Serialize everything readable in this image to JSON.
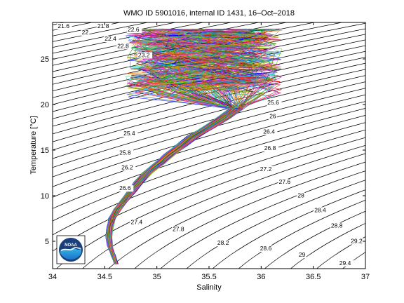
{
  "chart_data": {
    "type": "line",
    "title": "WMO ID 5901016, internal ID 1431, 16–Oct–2018",
    "xlabel": "Salinity",
    "ylabel": "Temperature [°C]",
    "xlim": [
      34,
      37
    ],
    "ylim": [
      2,
      29
    ],
    "xticks": [
      34,
      34.5,
      35,
      35.5,
      36,
      36.5,
      37
    ],
    "xtick_labels": [
      "34",
      "34.5",
      "35",
      "35.5",
      "36",
      "36.5",
      "37"
    ],
    "yticks": [
      5,
      10,
      15,
      20,
      25
    ],
    "ytick_labels": [
      "5",
      "10",
      "15",
      "20",
      "25"
    ],
    "grid": false,
    "density_contours": {
      "sigma_min": 21.4,
      "sigma_max": 30.2,
      "step": 0.2
    },
    "contour_labels": [
      {
        "text": "21.6",
        "S": 34.05,
        "T": 28.4
      },
      {
        "text": "21.8",
        "S": 34.43,
        "T": 28.4
      },
      {
        "text": "22",
        "S": 34.28,
        "T": 27.7
      },
      {
        "text": "22.4",
        "S": 34.5,
        "T": 27.0
      },
      {
        "text": "22.6",
        "S": 34.72,
        "T": 28.0
      },
      {
        "text": "22.8",
        "S": 34.62,
        "T": 26.2
      },
      {
        "text": "23.2",
        "S": 34.82,
        "T": 25.2
      },
      {
        "text": "25.4",
        "S": 34.68,
        "T": 16.6
      },
      {
        "text": "25.6",
        "S": 36.06,
        "T": 20.0
      },
      {
        "text": "25.8",
        "S": 34.64,
        "T": 14.5
      },
      {
        "text": "26",
        "S": 36.08,
        "T": 18.5
      },
      {
        "text": "26.2",
        "S": 34.66,
        "T": 12.9
      },
      {
        "text": "26.4",
        "S": 36.02,
        "T": 16.8
      },
      {
        "text": "26.6",
        "S": 34.64,
        "T": 10.6
      },
      {
        "text": "26.8",
        "S": 36.03,
        "T": 15.0
      },
      {
        "text": "27.2",
        "S": 35.99,
        "T": 12.7
      },
      {
        "text": "27.4",
        "S": 34.75,
        "T": 6.9
      },
      {
        "text": "27.6",
        "S": 36.17,
        "T": 11.3
      },
      {
        "text": "27.8",
        "S": 35.15,
        "T": 6.1
      },
      {
        "text": "28",
        "S": 36.35,
        "T": 9.8
      },
      {
        "text": "28.2",
        "S": 35.58,
        "T": 4.6
      },
      {
        "text": "28.4",
        "S": 36.51,
        "T": 8.2
      },
      {
        "text": "28.6",
        "S": 35.99,
        "T": 4.0
      },
      {
        "text": "28.8",
        "S": 36.67,
        "T": 6.5
      },
      {
        "text": "29",
        "S": 36.36,
        "T": 3.3
      },
      {
        "text": "29.2",
        "S": 36.86,
        "T": 4.8
      },
      {
        "text": "29.4",
        "S": 36.75,
        "T": 2.4
      }
    ],
    "profiles": {
      "count": 140,
      "deep_branch": [
        {
          "S": 34.61,
          "T": 2.5
        },
        {
          "S": 34.58,
          "T": 3.5
        },
        {
          "S": 34.55,
          "T": 4.5
        },
        {
          "S": 34.54,
          "T": 5.5
        },
        {
          "S": 34.55,
          "T": 6.5
        },
        {
          "S": 34.57,
          "T": 7.5
        },
        {
          "S": 34.62,
          "T": 8.5
        },
        {
          "S": 34.69,
          "T": 9.5
        },
        {
          "S": 34.76,
          "T": 10.5
        },
        {
          "S": 34.83,
          "T": 11.5
        },
        {
          "S": 34.91,
          "T": 12.5
        },
        {
          "S": 35.02,
          "T": 13.5
        },
        {
          "S": 35.12,
          "T": 14.5
        },
        {
          "S": 35.24,
          "T": 15.5
        },
        {
          "S": 35.35,
          "T": 16.5
        },
        {
          "S": 35.5,
          "T": 17.5
        },
        {
          "S": 35.64,
          "T": 18.5
        },
        {
          "S": 35.76,
          "T": 19.5
        }
      ],
      "surface_cloud": {
        "S_range": [
          34.7,
          36.2
        ],
        "T_range": [
          19.5,
          28.3
        ]
      }
    }
  },
  "logo": {
    "text": "NOAA"
  }
}
